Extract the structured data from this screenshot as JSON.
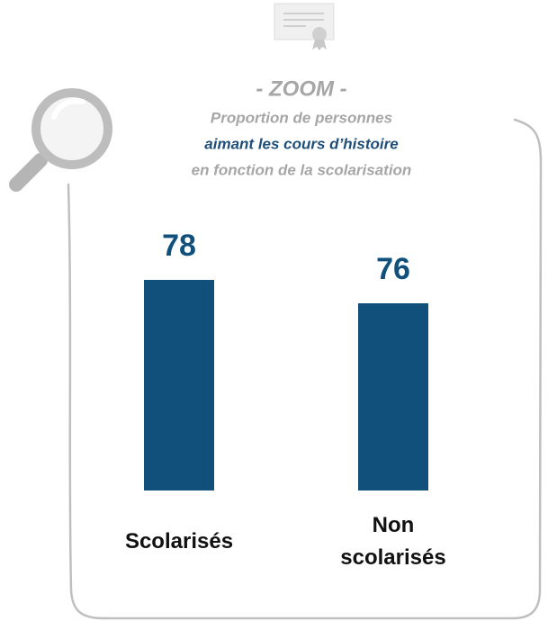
{
  "chart_data": {
    "type": "bar",
    "title": "- ZOOM -",
    "subtitle": [
      "Proportion de personnes",
      "aimant les cours d’histoire",
      "en fonction de la scolarisation"
    ],
    "categories": [
      "Scolarisés",
      "Non scolarisés"
    ],
    "values": [
      78,
      76
    ],
    "color": "#11507a",
    "ylim": [
      60,
      80
    ]
  }
}
